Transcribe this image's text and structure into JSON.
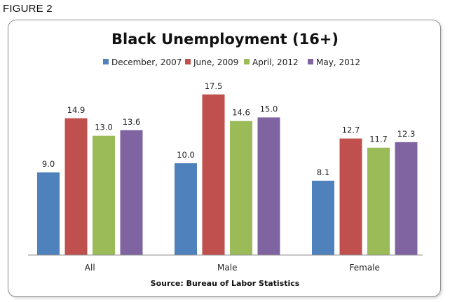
{
  "figure_label": "FIGURE 2",
  "chart_data": {
    "type": "bar",
    "title": "Black Unemployment (16+)",
    "source": "Source: Bureau of Labor Statistics",
    "categories": [
      "All",
      "Male",
      "Female"
    ],
    "series": [
      {
        "name": "December, 2007",
        "color": "#4f81bd",
        "values": [
          9.0,
          10.0,
          8.1
        ]
      },
      {
        "name": "June, 2009",
        "color": "#c0504d",
        "values": [
          14.9,
          17.5,
          12.7
        ]
      },
      {
        "name": "April, 2012",
        "color": "#9bbb59",
        "values": [
          13.0,
          14.6,
          11.7
        ]
      },
      {
        "name": "May, 2012",
        "color": "#8064a2",
        "values": [
          13.6,
          15.0,
          12.3
        ]
      }
    ],
    "ylim": [
      0,
      20
    ],
    "grid": false,
    "legend_position": "top"
  }
}
